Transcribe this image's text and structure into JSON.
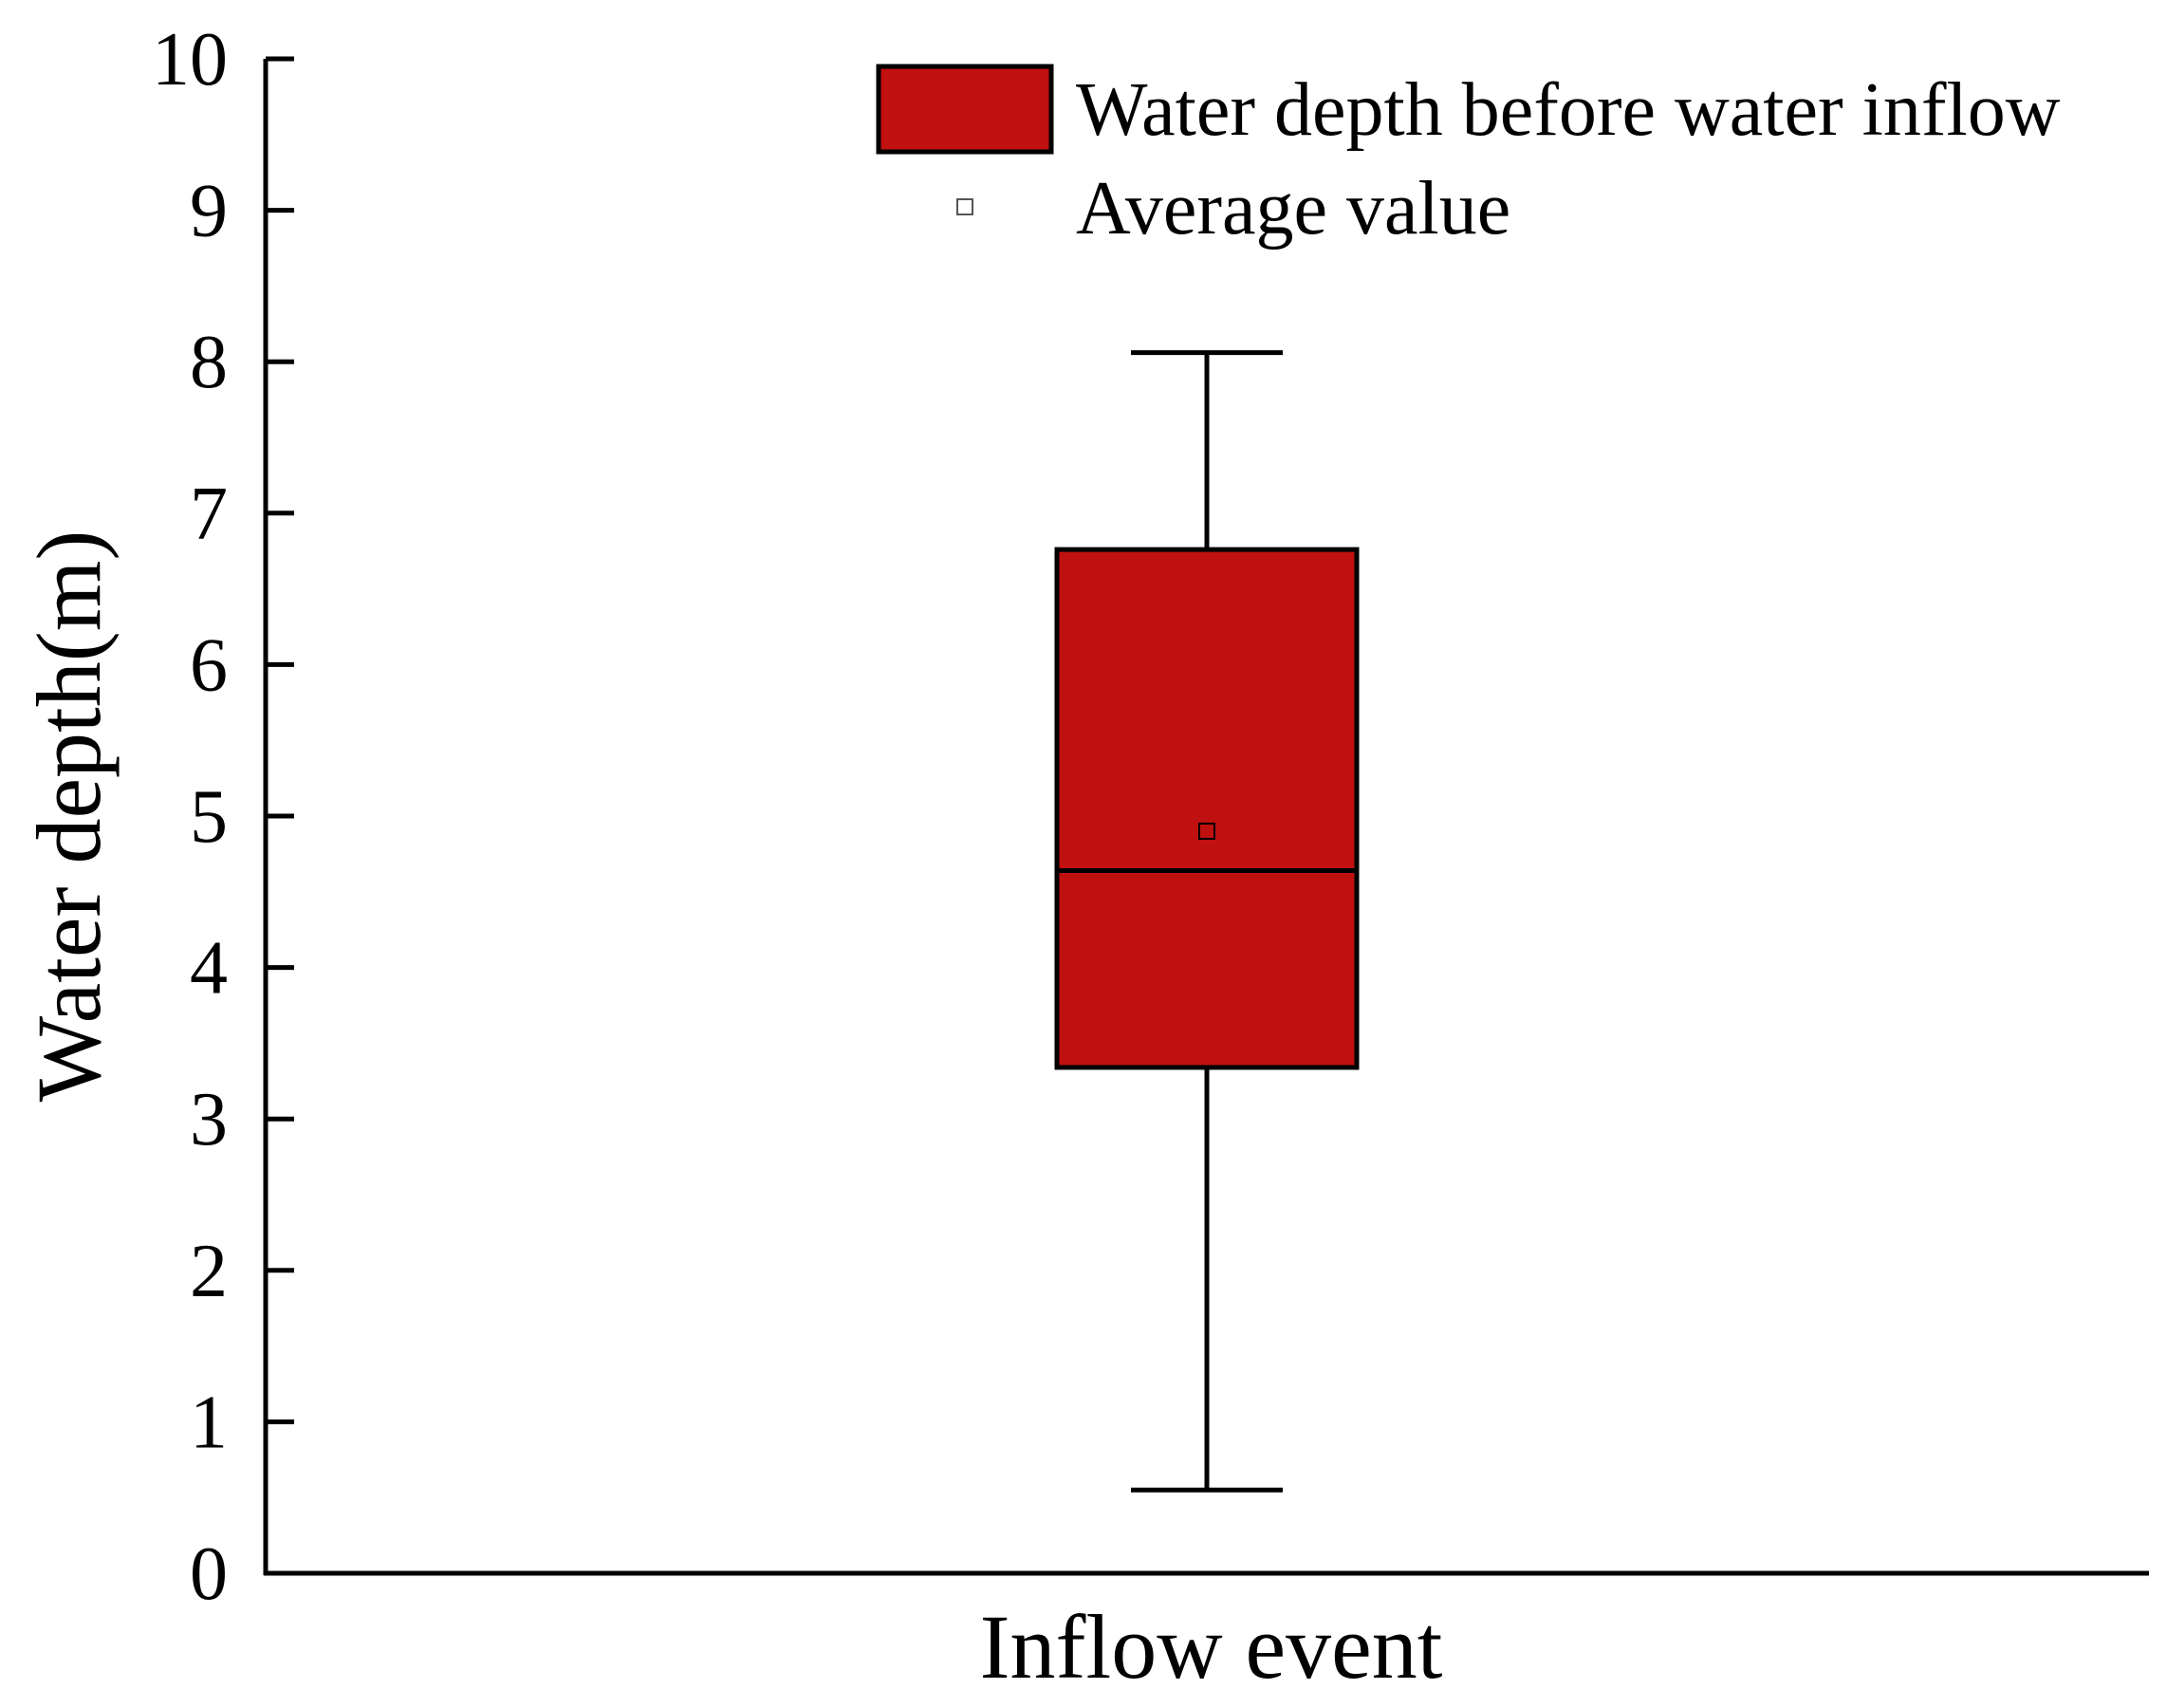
{
  "chart_data": {
    "type": "box",
    "xlabel": "Inflow event",
    "ylabel": "Water depth(m)",
    "ylim": [
      0,
      10
    ],
    "yticks": [
      0,
      1,
      2,
      3,
      4,
      5,
      6,
      7,
      8,
      9,
      10
    ],
    "grid": false,
    "legend": {
      "placement": "top-right",
      "entries": [
        {
          "label": "Water depth before water inflow",
          "marker": "box"
        },
        {
          "label": "Average value",
          "marker": "square"
        }
      ]
    },
    "series": [
      {
        "whisker_low": 0.55,
        "q1": 3.34,
        "median": 4.64,
        "q3": 6.76,
        "whisker_high": 8.06,
        "mean": 4.9
      }
    ],
    "colors": {
      "box_fill": "#c01010",
      "stroke": "#000000",
      "mean_marker": "#ffffff"
    }
  }
}
